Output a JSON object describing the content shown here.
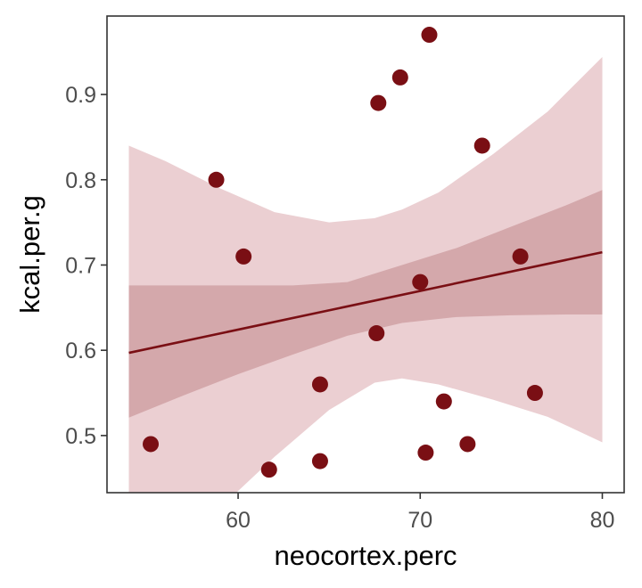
{
  "chart_data": {
    "type": "scatter",
    "xlabel": "neocortex.perc",
    "ylabel": "kcal.per.g",
    "xlim": [
      52.8,
      81.2
    ],
    "ylim": [
      0.433,
      0.992
    ],
    "x_ticks": [
      {
        "value": 60,
        "label": "60"
      },
      {
        "value": 70,
        "label": "70"
      },
      {
        "value": 80,
        "label": "80"
      }
    ],
    "y_ticks": [
      {
        "value": 0.5,
        "label": "0.5"
      },
      {
        "value": 0.6,
        "label": "0.6"
      },
      {
        "value": 0.7,
        "label": "0.7"
      },
      {
        "value": 0.8,
        "label": "0.8"
      },
      {
        "value": 0.9,
        "label": "0.9"
      }
    ],
    "points": [
      {
        "x": 55.2,
        "y": 0.49
      },
      {
        "x": 58.8,
        "y": 0.8
      },
      {
        "x": 60.3,
        "y": 0.71
      },
      {
        "x": 61.7,
        "y": 0.46
      },
      {
        "x": 64.5,
        "y": 0.56
      },
      {
        "x": 64.5,
        "y": 0.47
      },
      {
        "x": 67.6,
        "y": 0.62
      },
      {
        "x": 67.7,
        "y": 0.89
      },
      {
        "x": 68.9,
        "y": 0.92
      },
      {
        "x": 70.0,
        "y": 0.68
      },
      {
        "x": 70.3,
        "y": 0.48
      },
      {
        "x": 70.5,
        "y": 0.97
      },
      {
        "x": 71.3,
        "y": 0.54
      },
      {
        "x": 72.6,
        "y": 0.49
      },
      {
        "x": 73.4,
        "y": 0.84
      },
      {
        "x": 75.5,
        "y": 0.71
      },
      {
        "x": 76.3,
        "y": 0.55
      }
    ],
    "fit_line": [
      {
        "x": 54.0,
        "y": 0.597
      },
      {
        "x": 80.0,
        "y": 0.715
      }
    ],
    "mean_band": [
      {
        "x": 54.0,
        "lo": 0.521,
        "hi": 0.676
      },
      {
        "x": 57.0,
        "lo": 0.547,
        "hi": 0.676
      },
      {
        "x": 60.0,
        "lo": 0.572,
        "hi": 0.676
      },
      {
        "x": 63.0,
        "lo": 0.595,
        "hi": 0.676
      },
      {
        "x": 66.0,
        "lo": 0.617,
        "hi": 0.68
      },
      {
        "x": 69.0,
        "lo": 0.632,
        "hi": 0.7
      },
      {
        "x": 72.0,
        "lo": 0.639,
        "hi": 0.72
      },
      {
        "x": 75.0,
        "lo": 0.641,
        "hi": 0.745
      },
      {
        "x": 78.0,
        "lo": 0.642,
        "hi": 0.77
      },
      {
        "x": 80.0,
        "lo": 0.642,
        "hi": 0.788
      }
    ],
    "prediction_band": [
      {
        "x": 54.0,
        "lo": 0.327,
        "hi": 0.84
      },
      {
        "x": 56.0,
        "lo": 0.36,
        "hi": 0.822
      },
      {
        "x": 59.0,
        "lo": 0.415,
        "hi": 0.79
      },
      {
        "x": 62.0,
        "lo": 0.475,
        "hi": 0.762
      },
      {
        "x": 65.0,
        "lo": 0.53,
        "hi": 0.75
      },
      {
        "x": 67.5,
        "lo": 0.562,
        "hi": 0.755
      },
      {
        "x": 69.0,
        "lo": 0.567,
        "hi": 0.765
      },
      {
        "x": 71.0,
        "lo": 0.56,
        "hi": 0.785
      },
      {
        "x": 74.0,
        "lo": 0.542,
        "hi": 0.83
      },
      {
        "x": 77.0,
        "lo": 0.522,
        "hi": 0.88
      },
      {
        "x": 80.0,
        "lo": 0.492,
        "hi": 0.944
      }
    ],
    "colors": {
      "points": "#7a0f14",
      "fit_line": "#7a0f14",
      "mean_band": "#d4a8ab",
      "prediction_band": "#ebcfd2",
      "panel_border": "#333333",
      "tick_text": "#4d4d4d"
    },
    "grid": false,
    "legend": "none"
  }
}
